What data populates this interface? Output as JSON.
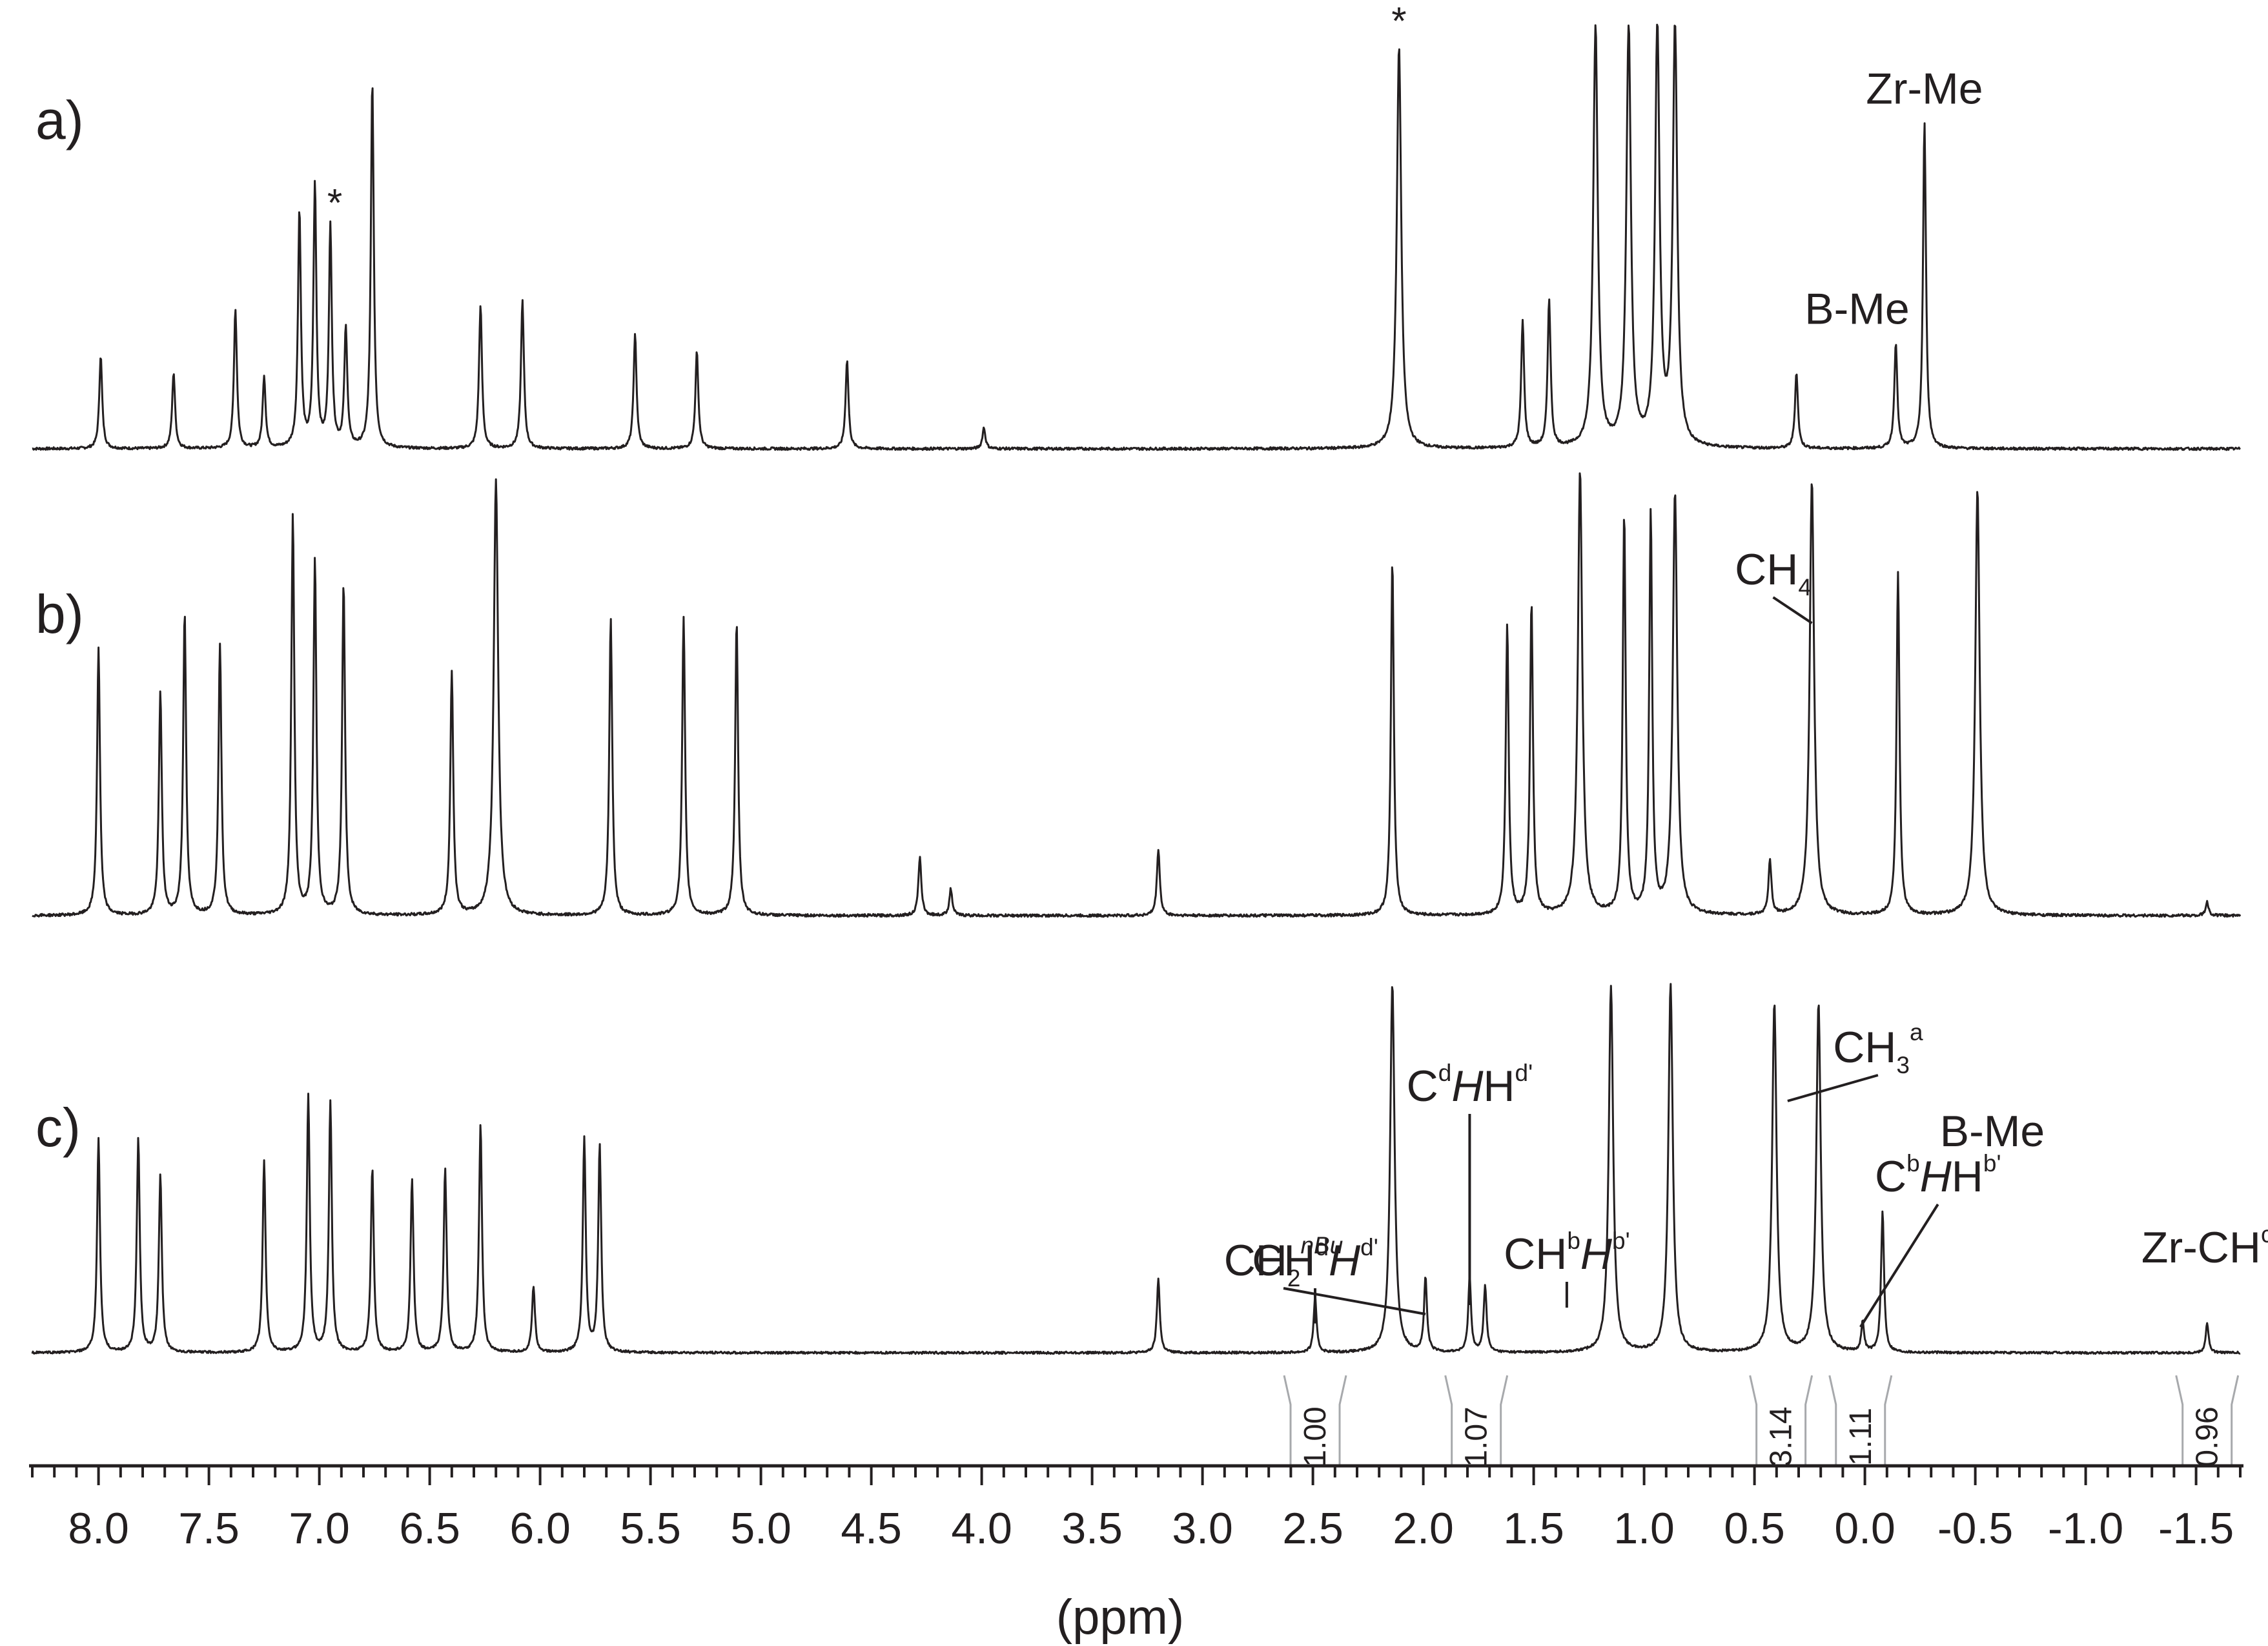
{
  "chart_data": {
    "type": "line",
    "xlabel": "(ppm)",
    "x_reversed": true,
    "xlim": [
      8.3,
      -1.7
    ],
    "x_ticks": [
      "8.0",
      "7.5",
      "7.0",
      "6.5",
      "6.0",
      "5.5",
      "5.0",
      "4.5",
      "4.0",
      "3.5",
      "3.0",
      "2.5",
      "2.0",
      "1.5",
      "1.0",
      "0.5",
      "0.0",
      "-0.5",
      "-1.0",
      "-1.5"
    ],
    "panels": [
      {
        "label": "a)",
        "peaks": [
          {
            "shift": 7.99,
            "height": 0.22
          },
          {
            "shift": 7.66,
            "height": 0.18
          },
          {
            "shift": 7.38,
            "height": 0.33
          },
          {
            "shift": 7.25,
            "height": 0.17
          },
          {
            "shift": 7.09,
            "height": 0.56
          },
          {
            "shift": 7.02,
            "height": 0.62
          },
          {
            "shift": 6.95,
            "height": 0.52
          },
          {
            "shift": 6.88,
            "height": 0.28
          },
          {
            "shift": 6.76,
            "height": 0.87
          },
          {
            "shift": 6.27,
            "height": 0.34
          },
          {
            "shift": 6.08,
            "height": 0.35
          },
          {
            "shift": 5.57,
            "height": 0.27
          },
          {
            "shift": 5.29,
            "height": 0.23
          },
          {
            "shift": 4.61,
            "height": 0.21
          },
          {
            "shift": 3.99,
            "height": 0.05
          },
          {
            "shift": 2.11,
            "height": 0.95
          },
          {
            "shift": 1.55,
            "height": 0.3
          },
          {
            "shift": 1.43,
            "height": 0.35
          },
          {
            "shift": 1.22,
            "height": 1.0
          },
          {
            "shift": 1.07,
            "height": 1.0
          },
          {
            "shift": 0.94,
            "height": 1.0
          },
          {
            "shift": 0.86,
            "height": 1.0
          },
          {
            "shift": 0.31,
            "height": 0.18
          },
          {
            "shift": -0.14,
            "height": 0.25
          },
          {
            "shift": -0.27,
            "height": 0.77
          }
        ],
        "annotations": [
          {
            "text": "*",
            "shift": 6.93
          },
          {
            "text": "*",
            "shift": 2.11
          },
          {
            "text": "B-Me",
            "shift": -0.14
          },
          {
            "text": "Zr-Me",
            "shift": -0.27
          }
        ]
      },
      {
        "label": "b)",
        "peaks": [
          {
            "shift": 8.0,
            "height": 0.6
          },
          {
            "shift": 7.72,
            "height": 0.5
          },
          {
            "shift": 7.61,
            "height": 0.68
          },
          {
            "shift": 7.45,
            "height": 0.61
          },
          {
            "shift": 7.12,
            "height": 0.9
          },
          {
            "shift": 7.02,
            "height": 0.8
          },
          {
            "shift": 6.89,
            "height": 0.75
          },
          {
            "shift": 6.4,
            "height": 0.55
          },
          {
            "shift": 6.2,
            "height": 0.98
          },
          {
            "shift": 5.68,
            "height": 0.67
          },
          {
            "shift": 5.35,
            "height": 0.67
          },
          {
            "shift": 5.11,
            "height": 0.66
          },
          {
            "shift": 4.28,
            "height": 0.13
          },
          {
            "shift": 4.14,
            "height": 0.06
          },
          {
            "shift": 3.2,
            "height": 0.15
          },
          {
            "shift": 2.14,
            "height": 0.8
          },
          {
            "shift": 1.62,
            "height": 0.65
          },
          {
            "shift": 1.51,
            "height": 0.7
          },
          {
            "shift": 1.29,
            "height": 1.0
          },
          {
            "shift": 1.09,
            "height": 0.9
          },
          {
            "shift": 0.97,
            "height": 0.9
          },
          {
            "shift": 0.86,
            "height": 0.95
          },
          {
            "shift": 0.43,
            "height": 0.12
          },
          {
            "shift": 0.24,
            "height": 0.98
          },
          {
            "shift": -0.15,
            "height": 0.77
          },
          {
            "shift": -0.51,
            "height": 0.96
          },
          {
            "shift": -1.55,
            "height": 0.03
          }
        ],
        "annotations": [
          {
            "text": "CH",
            "sub": "4",
            "shift": 0.24
          }
        ]
      },
      {
        "label": "c)",
        "peaks": [
          {
            "shift": 8.0,
            "height": 0.58
          },
          {
            "shift": 7.82,
            "height": 0.58
          },
          {
            "shift": 7.72,
            "height": 0.48
          },
          {
            "shift": 7.25,
            "height": 0.52
          },
          {
            "shift": 7.05,
            "height": 0.7
          },
          {
            "shift": 6.95,
            "height": 0.68
          },
          {
            "shift": 6.76,
            "height": 0.5
          },
          {
            "shift": 6.58,
            "height": 0.47
          },
          {
            "shift": 6.43,
            "height": 0.5
          },
          {
            "shift": 6.27,
            "height": 0.62
          },
          {
            "shift": 6.03,
            "height": 0.18
          },
          {
            "shift": 5.8,
            "height": 0.58
          },
          {
            "shift": 5.73,
            "height": 0.56
          },
          {
            "shift": 3.2,
            "height": 0.2
          },
          {
            "shift": 2.49,
            "height": 0.15
          },
          {
            "shift": 2.14,
            "height": 1.0
          },
          {
            "shift": 1.99,
            "height": 0.2
          },
          {
            "shift": 1.79,
            "height": 0.2
          },
          {
            "shift": 1.72,
            "height": 0.18
          },
          {
            "shift": 1.15,
            "height": 1.0
          },
          {
            "shift": 0.88,
            "height": 1.0
          },
          {
            "shift": 0.41,
            "height": 0.95
          },
          {
            "shift": 0.21,
            "height": 0.95
          },
          {
            "shift": 0.01,
            "height": 0.08
          },
          {
            "shift": -0.08,
            "height": 0.38
          },
          {
            "shift": -1.55,
            "height": 0.08
          }
        ],
        "annotations": [
          {
            "text": "CH",
            "sub": "2",
            "sup": "nBu",
            "shift": 1.99
          },
          {
            "text": "CH",
            "sup": "d",
            "italic": "H",
            "sup2": "d'",
            "shift": 2.49
          },
          {
            "text": "C",
            "italic": "H",
            "sup": "d",
            "text2": "H",
            "sup2": "d'",
            "shift": 1.79
          },
          {
            "text": "CH",
            "sup": "b",
            "italic": "H",
            "sup2": "b'",
            "shift": 1.35
          },
          {
            "text": "CH",
            "sub": "3",
            "sup": "a",
            "shift": 0.35
          },
          {
            "text": "C",
            "italic": "H",
            "sup": "b",
            "text2": "H",
            "sup2": "b'",
            "shift": 0.02
          },
          {
            "text": "B-Me",
            "shift": -0.08
          },
          {
            "text": "Zr-CH",
            "sup": "c",
            "shift": -1.55
          }
        ],
        "integrals": [
          {
            "value": "1.00",
            "shift": 2.49
          },
          {
            "value": "1.07",
            "shift": 1.76
          },
          {
            "value": "3.14",
            "shift": 0.38
          },
          {
            "value": "1.11",
            "shift": 0.02
          },
          {
            "value": "0.96",
            "shift": -1.55
          }
        ]
      }
    ]
  }
}
